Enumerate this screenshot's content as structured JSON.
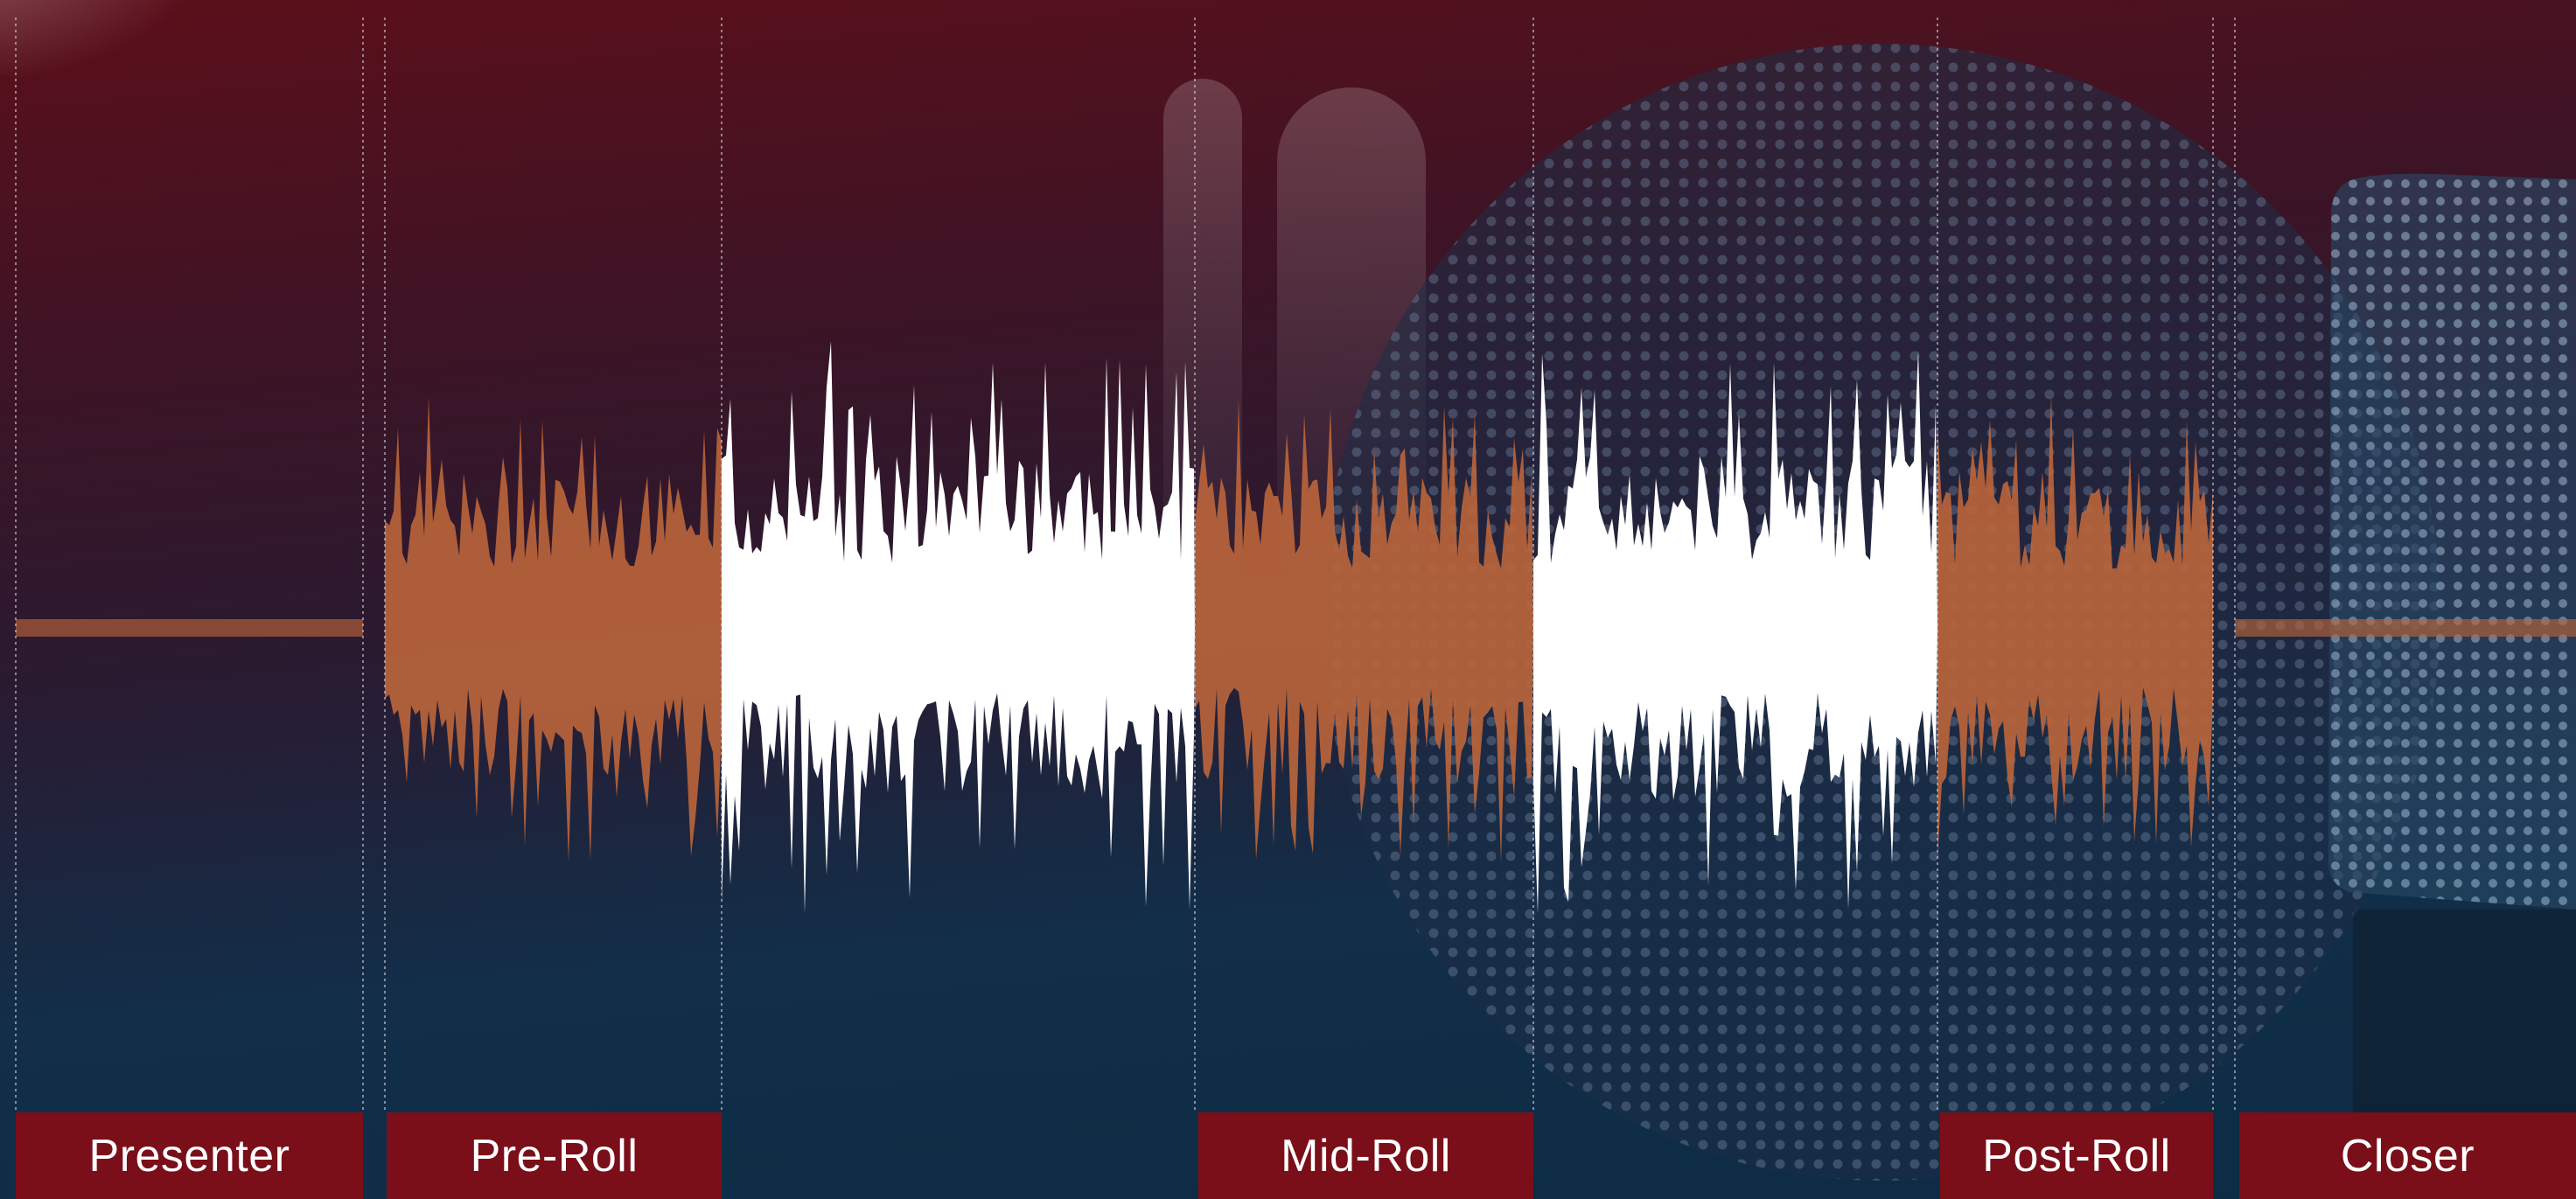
{
  "segments": [
    {
      "label": "Presenter",
      "kind": "flat"
    },
    {
      "label": "Pre-Roll",
      "kind": "ad"
    },
    {
      "label": "",
      "kind": "content"
    },
    {
      "label": "Mid-Roll",
      "kind": "ad"
    },
    {
      "label": "",
      "kind": "content"
    },
    {
      "label": "Post-Roll",
      "kind": "ad"
    },
    {
      "label": "Closer",
      "kind": "flat"
    }
  ],
  "colors": {
    "ad_wave": "#b9643b",
    "content_wave": "#ffffff",
    "label_bg": "#7a0f19",
    "label_text": "#ffffff",
    "divider": "#d8d8e0"
  }
}
